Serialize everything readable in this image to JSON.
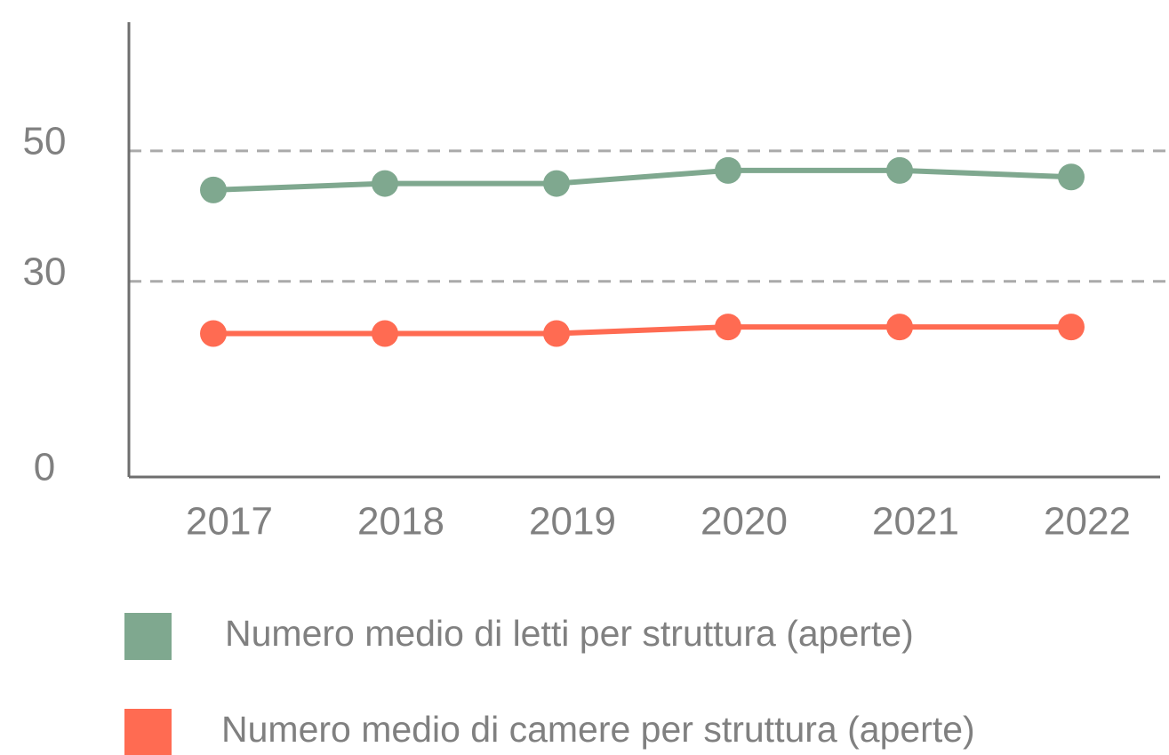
{
  "chart_data": {
    "type": "line",
    "categories": [
      "2017",
      "2018",
      "2019",
      "2020",
      "2021",
      "2022"
    ],
    "series": [
      {
        "name": "Numero medio di letti per struttura (aperte)",
        "color": "#7fa88f",
        "values": [
          44,
          45,
          45,
          47,
          47,
          46
        ]
      },
      {
        "name": "Numero medio di camere per struttura (aperte)",
        "color": "#ff6b52",
        "values": [
          22,
          22,
          22,
          23,
          23,
          23
        ]
      }
    ],
    "ylim": [
      0,
      70
    ],
    "yticks": [
      0,
      30,
      50
    ],
    "grid": true,
    "legend": "bottom"
  }
}
